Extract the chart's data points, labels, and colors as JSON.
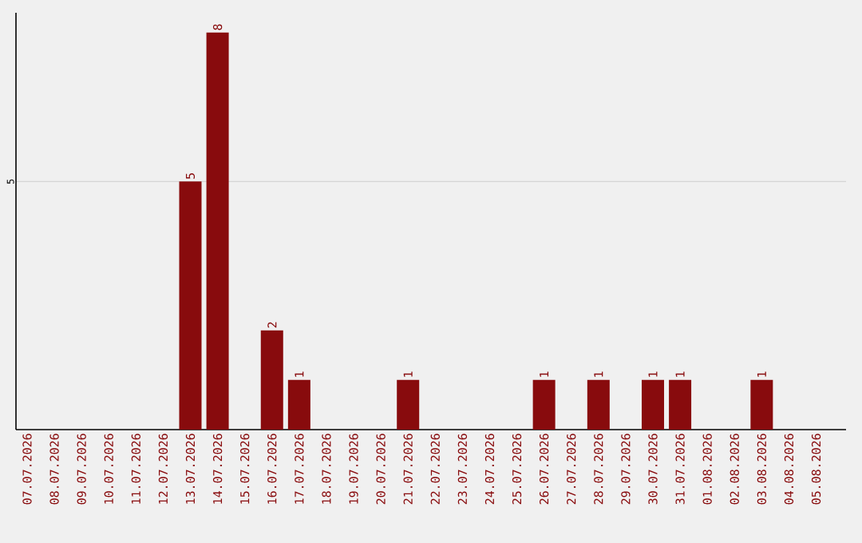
{
  "chart_data": {
    "type": "bar",
    "categories": [
      "07.07.2026",
      "08.07.2026",
      "09.07.2026",
      "10.07.2026",
      "11.07.2026",
      "12.07.2026",
      "13.07.2026",
      "14.07.2026",
      "15.07.2026",
      "16.07.2026",
      "17.07.2026",
      "18.07.2026",
      "19.07.2026",
      "20.07.2026",
      "21.07.2026",
      "22.07.2026",
      "23.07.2026",
      "24.07.2026",
      "25.07.2026",
      "26.07.2026",
      "27.07.2026",
      "28.07.2026",
      "29.07.2026",
      "30.07.2026",
      "31.07.2026",
      "01.08.2026",
      "02.08.2026",
      "03.08.2026",
      "04.08.2026",
      "05.08.2026"
    ],
    "values": [
      0,
      0,
      0,
      0,
      0,
      0,
      5,
      8,
      0,
      2,
      1,
      0,
      0,
      0,
      1,
      0,
      0,
      0,
      0,
      1,
      0,
      1,
      0,
      1,
      1,
      0,
      0,
      1,
      0,
      0
    ],
    "value_labels": [
      null,
      null,
      null,
      null,
      null,
      null,
      "5",
      "8",
      null,
      "2",
      "1",
      null,
      null,
      null,
      "1",
      null,
      null,
      null,
      null,
      "1",
      null,
      "1",
      null,
      "1",
      "1",
      null,
      null,
      "1",
      null,
      null
    ],
    "color": "#880b0d",
    "ylim": [
      0,
      8.4
    ],
    "yticks": [
      5
    ],
    "grid": "y"
  }
}
